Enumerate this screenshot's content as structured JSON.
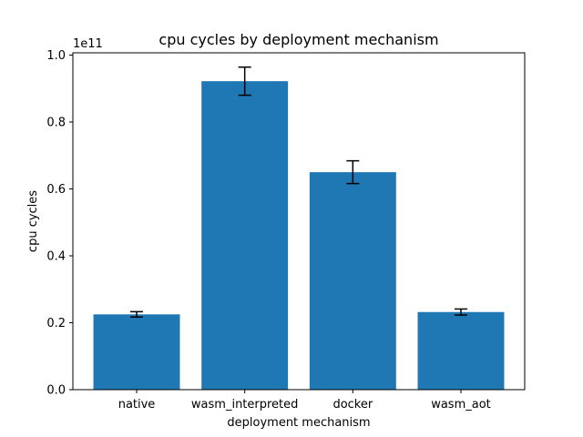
{
  "chart_data": {
    "type": "bar",
    "title": "cpu cycles by deployment mechanism",
    "xlabel": "deployment mechanism",
    "ylabel": "cpu cycles",
    "y_offset_label": "1e11",
    "categories": [
      "native",
      "wasm_interpreted",
      "docker",
      "wasm_aot"
    ],
    "values": [
      0.225,
      0.922,
      0.65,
      0.232
    ],
    "errors": [
      0.008,
      0.042,
      0.034,
      0.009
    ],
    "ylim": [
      0,
      1.0
    ],
    "yticks": [
      0.0,
      0.2,
      0.4,
      0.6,
      0.8,
      1.0
    ],
    "ytick_labels": [
      "0.0",
      "0.2",
      "0.4",
      "0.6",
      "0.8",
      "1.0"
    ],
    "bar_color": "#1f77b4",
    "grid": false
  }
}
